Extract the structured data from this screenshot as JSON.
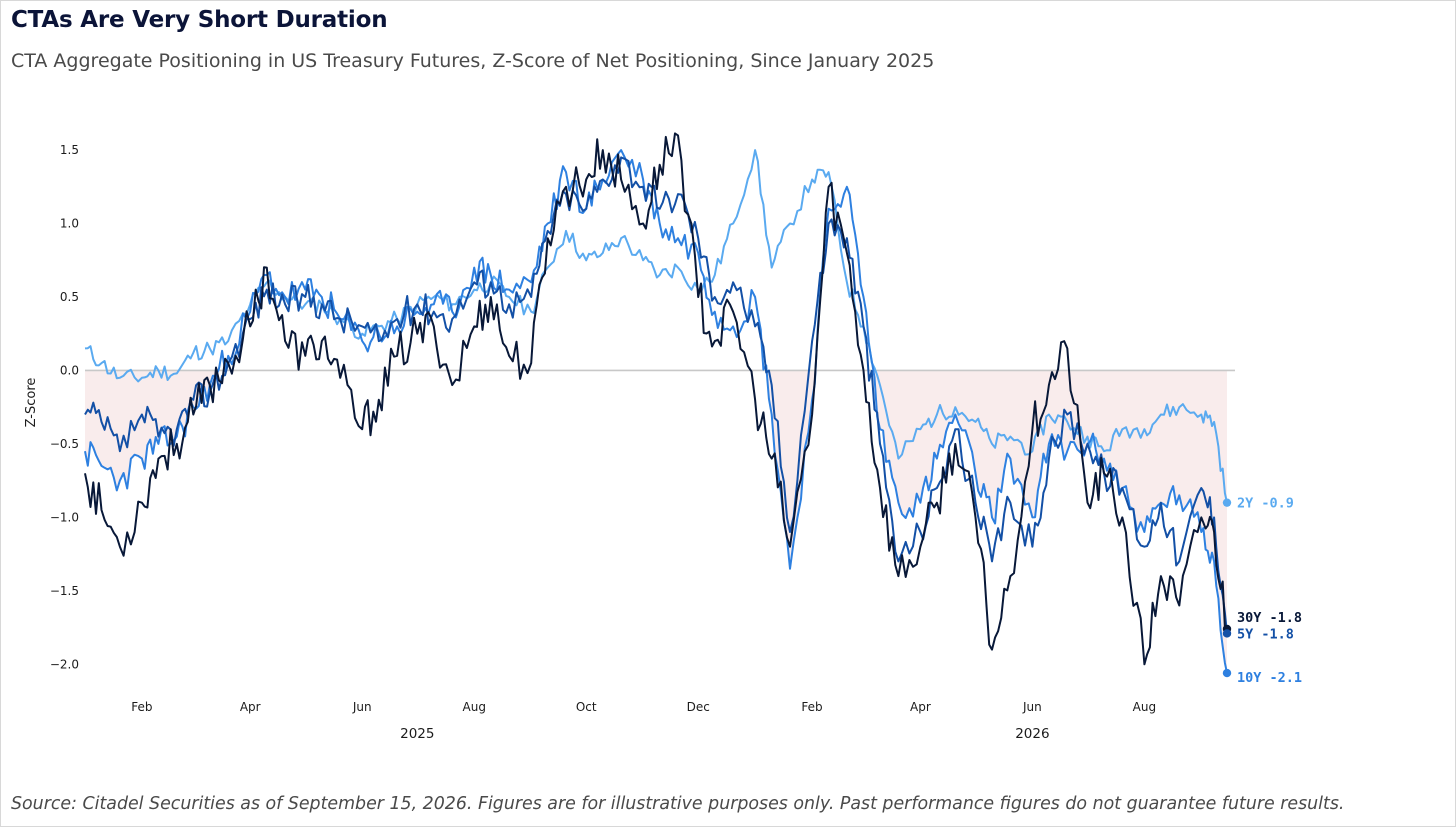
{
  "title": "CTAs Are Very Short Duration",
  "subtitle": "CTA Aggregate Positioning in US Treasury Futures, Z-Score of Net Positioning, Since January 2025",
  "source": "Source: Citadel Securities as of September 15, 2026. Figures are for illustrative purposes only. Past performance figures do not guarantee future results.",
  "colors": {
    "2Y": "#5aaaf0",
    "10Y": "#2e80e0",
    "5Y": "#1350a6",
    "30Y": "#081838",
    "zero_line": "#c8c8c8",
    "negative_fill": "#f9ecec"
  },
  "chart_data": {
    "type": "line",
    "ylabel": "Z-Score",
    "xlabel": "",
    "ylim": [
      -2.25,
      1.8
    ],
    "y_ticks": [
      {
        "value": 1.5,
        "label": "1.5"
      },
      {
        "value": 1.0,
        "label": "1.0"
      },
      {
        "value": 0.5,
        "label": "0.5"
      },
      {
        "value": 0.0,
        "label": "0.0"
      },
      {
        "value": -0.5,
        "label": "−0.5"
      },
      {
        "value": -1.0,
        "label": "−1.0"
      },
      {
        "value": -1.5,
        "label": "−1.5"
      },
      {
        "value": -2.0,
        "label": "−2.0"
      }
    ],
    "x_ticks": [
      {
        "date": "2025-02-01",
        "label": "Feb"
      },
      {
        "date": "2025-04-01",
        "label": "Apr"
      },
      {
        "date": "2025-06-01",
        "label": "Jun"
      },
      {
        "date": "2025-08-01",
        "label": "Aug"
      },
      {
        "date": "2025-10-01",
        "label": "Oct"
      },
      {
        "date": "2025-12-01",
        "label": "Dec"
      },
      {
        "date": "2026-02-01",
        "label": "Feb"
      },
      {
        "date": "2026-04-01",
        "label": "Apr"
      },
      {
        "date": "2026-06-01",
        "label": "Jun"
      },
      {
        "date": "2026-08-01",
        "label": "Aug"
      }
    ],
    "year_labels": [
      {
        "date": "2025-07-01",
        "label": "2025"
      },
      {
        "date": "2026-06-01",
        "label": "2026"
      }
    ],
    "grid": false,
    "negative_region_shaded": true,
    "end_labels": [
      {
        "series": "2Y",
        "label": "2Y -0.9"
      },
      {
        "series": "30Y",
        "label": "30Y -1.8"
      },
      {
        "series": "5Y",
        "label": "5Y -1.8"
      },
      {
        "series": "10Y",
        "label": "10Y -2.1"
      }
    ],
    "series": [
      {
        "name": "2Y",
        "points": [
          [
            "2025-01-01",
            0.15
          ],
          [
            "2025-01-10",
            0.05
          ],
          [
            "2025-01-20",
            -0.05
          ],
          [
            "2025-02-01",
            -0.05
          ],
          [
            "2025-02-10",
            0.0
          ],
          [
            "2025-02-20",
            -0.02
          ],
          [
            "2025-03-01",
            0.12
          ],
          [
            "2025-03-10",
            0.15
          ],
          [
            "2025-03-20",
            0.2
          ],
          [
            "2025-04-01",
            0.45
          ],
          [
            "2025-04-10",
            0.6
          ],
          [
            "2025-04-20",
            0.5
          ],
          [
            "2025-05-01",
            0.45
          ],
          [
            "2025-05-10",
            0.45
          ],
          [
            "2025-05-20",
            0.35
          ],
          [
            "2025-06-01",
            0.25
          ],
          [
            "2025-06-10",
            0.3
          ],
          [
            "2025-06-20",
            0.35
          ],
          [
            "2025-07-01",
            0.45
          ],
          [
            "2025-07-10",
            0.5
          ],
          [
            "2025-07-20",
            0.45
          ],
          [
            "2025-08-01",
            0.55
          ],
          [
            "2025-08-10",
            0.6
          ],
          [
            "2025-08-20",
            0.5
          ],
          [
            "2025-09-01",
            0.4
          ],
          [
            "2025-09-10",
            0.7
          ],
          [
            "2025-09-20",
            0.95
          ],
          [
            "2025-10-01",
            0.75
          ],
          [
            "2025-10-10",
            0.8
          ],
          [
            "2025-10-20",
            0.9
          ],
          [
            "2025-11-01",
            0.75
          ],
          [
            "2025-11-10",
            0.65
          ],
          [
            "2025-11-20",
            0.7
          ],
          [
            "2025-12-01",
            0.55
          ],
          [
            "2025-12-10",
            0.65
          ],
          [
            "2025-12-20",
            1.0
          ],
          [
            "2026-01-01",
            1.5
          ],
          [
            "2026-01-10",
            0.7
          ],
          [
            "2026-01-20",
            1.0
          ],
          [
            "2026-02-01",
            1.3
          ],
          [
            "2026-02-10",
            1.35
          ],
          [
            "2026-02-20",
            0.6
          ],
          [
            "2026-03-01",
            0.3
          ],
          [
            "2026-03-10",
            -0.1
          ],
          [
            "2026-03-20",
            -0.6
          ],
          [
            "2026-04-01",
            -0.4
          ],
          [
            "2026-04-10",
            -0.3
          ],
          [
            "2026-04-20",
            -0.25
          ],
          [
            "2026-05-01",
            -0.35
          ],
          [
            "2026-05-10",
            -0.5
          ],
          [
            "2026-05-20",
            -0.45
          ],
          [
            "2026-06-01",
            -0.55
          ],
          [
            "2026-06-10",
            -0.3
          ],
          [
            "2026-06-20",
            -0.35
          ],
          [
            "2026-07-01",
            -0.45
          ],
          [
            "2026-07-10",
            -0.55
          ],
          [
            "2026-07-20",
            -0.4
          ],
          [
            "2026-08-01",
            -0.4
          ],
          [
            "2026-08-10",
            -0.3
          ],
          [
            "2026-08-20",
            -0.25
          ],
          [
            "2026-09-01",
            -0.3
          ],
          [
            "2026-09-08",
            -0.35
          ],
          [
            "2026-09-15",
            -0.9
          ]
        ]
      },
      {
        "name": "10Y",
        "points": [
          [
            "2025-01-01",
            -0.55
          ],
          [
            "2025-01-10",
            -0.65
          ],
          [
            "2025-01-20",
            -0.75
          ],
          [
            "2025-02-01",
            -0.6
          ],
          [
            "2025-02-10",
            -0.5
          ],
          [
            "2025-02-20",
            -0.45
          ],
          [
            "2025-03-01",
            -0.25
          ],
          [
            "2025-03-10",
            -0.1
          ],
          [
            "2025-03-20",
            0.1
          ],
          [
            "2025-04-01",
            0.4
          ],
          [
            "2025-04-10",
            0.65
          ],
          [
            "2025-04-20",
            0.5
          ],
          [
            "2025-05-01",
            0.55
          ],
          [
            "2025-05-10",
            0.5
          ],
          [
            "2025-05-20",
            0.35
          ],
          [
            "2025-06-01",
            0.2
          ],
          [
            "2025-06-10",
            0.25
          ],
          [
            "2025-06-20",
            0.3
          ],
          [
            "2025-07-01",
            0.4
          ],
          [
            "2025-07-10",
            0.45
          ],
          [
            "2025-07-20",
            0.4
          ],
          [
            "2025-08-01",
            0.7
          ],
          [
            "2025-08-10",
            0.65
          ],
          [
            "2025-08-20",
            0.55
          ],
          [
            "2025-09-01",
            0.6
          ],
          [
            "2025-09-10",
            1.0
          ],
          [
            "2025-09-20",
            1.35
          ],
          [
            "2025-10-01",
            1.1
          ],
          [
            "2025-10-10",
            1.3
          ],
          [
            "2025-10-20",
            1.5
          ],
          [
            "2025-11-01",
            1.3
          ],
          [
            "2025-11-10",
            1.0
          ],
          [
            "2025-11-20",
            0.9
          ],
          [
            "2025-12-01",
            0.8
          ],
          [
            "2025-12-10",
            0.4
          ],
          [
            "2025-12-20",
            0.3
          ],
          [
            "2026-01-01",
            0.5
          ],
          [
            "2026-01-10",
            -0.3
          ],
          [
            "2026-01-20",
            -1.35
          ],
          [
            "2026-02-01",
            -0.2
          ],
          [
            "2026-02-10",
            1.1
          ],
          [
            "2026-02-20",
            1.25
          ],
          [
            "2026-03-01",
            0.5
          ],
          [
            "2026-03-10",
            -0.4
          ],
          [
            "2026-03-20",
            -0.9
          ],
          [
            "2026-04-01",
            -0.9
          ],
          [
            "2026-04-10",
            -0.6
          ],
          [
            "2026-04-20",
            -0.3
          ],
          [
            "2026-05-01",
            -0.7
          ],
          [
            "2026-05-10",
            -1.0
          ],
          [
            "2026-05-20",
            -0.6
          ],
          [
            "2026-06-01",
            -1.0
          ],
          [
            "2026-06-10",
            -0.5
          ],
          [
            "2026-06-20",
            -0.55
          ],
          [
            "2026-07-01",
            -0.5
          ],
          [
            "2026-07-10",
            -0.6
          ],
          [
            "2026-07-20",
            -0.8
          ],
          [
            "2026-08-01",
            -1.1
          ],
          [
            "2026-08-10",
            -0.9
          ],
          [
            "2026-08-20",
            -0.85
          ],
          [
            "2026-09-01",
            -1.1
          ],
          [
            "2026-09-08",
            -1.3
          ],
          [
            "2026-09-15",
            -2.06
          ]
        ]
      },
      {
        "name": "5Y",
        "points": [
          [
            "2025-01-01",
            -0.3
          ],
          [
            "2025-01-10",
            -0.35
          ],
          [
            "2025-01-20",
            -0.55
          ],
          [
            "2025-02-01",
            -0.3
          ],
          [
            "2025-02-10",
            -0.45
          ],
          [
            "2025-02-20",
            -0.4
          ],
          [
            "2025-03-01",
            -0.2
          ],
          [
            "2025-03-10",
            -0.15
          ],
          [
            "2025-03-20",
            0.05
          ],
          [
            "2025-04-01",
            0.35
          ],
          [
            "2025-04-10",
            0.55
          ],
          [
            "2025-04-20",
            0.45
          ],
          [
            "2025-05-01",
            0.5
          ],
          [
            "2025-05-10",
            0.45
          ],
          [
            "2025-05-20",
            0.35
          ],
          [
            "2025-06-01",
            0.3
          ],
          [
            "2025-06-10",
            0.2
          ],
          [
            "2025-06-20",
            0.35
          ],
          [
            "2025-07-01",
            0.45
          ],
          [
            "2025-07-10",
            0.4
          ],
          [
            "2025-07-20",
            0.35
          ],
          [
            "2025-08-01",
            0.6
          ],
          [
            "2025-08-10",
            0.6
          ],
          [
            "2025-08-20",
            0.45
          ],
          [
            "2025-09-01",
            0.5
          ],
          [
            "2025-09-10",
            0.95
          ],
          [
            "2025-09-20",
            1.2
          ],
          [
            "2025-10-01",
            1.1
          ],
          [
            "2025-10-10",
            1.3
          ],
          [
            "2025-10-20",
            1.45
          ],
          [
            "2025-11-01",
            1.25
          ],
          [
            "2025-11-10",
            1.1
          ],
          [
            "2025-11-20",
            1.2
          ],
          [
            "2025-12-01",
            0.9
          ],
          [
            "2025-12-10",
            0.5
          ],
          [
            "2025-12-20",
            0.6
          ],
          [
            "2026-01-01",
            0.3
          ],
          [
            "2026-01-10",
            -0.1
          ],
          [
            "2026-01-20",
            -1.1
          ],
          [
            "2026-02-01",
            0.2
          ],
          [
            "2026-02-10",
            1.0
          ],
          [
            "2026-02-20",
            0.9
          ],
          [
            "2026-03-01",
            0.3
          ],
          [
            "2026-03-10",
            -0.5
          ],
          [
            "2026-03-20",
            -1.3
          ],
          [
            "2026-04-01",
            -1.1
          ],
          [
            "2026-04-10",
            -0.8
          ],
          [
            "2026-04-20",
            -0.4
          ],
          [
            "2026-05-01",
            -0.9
          ],
          [
            "2026-05-10",
            -1.3
          ],
          [
            "2026-05-20",
            -0.9
          ],
          [
            "2026-06-01",
            -1.2
          ],
          [
            "2026-06-10",
            -0.6
          ],
          [
            "2026-06-20",
            -0.3
          ],
          [
            "2026-07-01",
            -0.5
          ],
          [
            "2026-07-10",
            -0.7
          ],
          [
            "2026-07-20",
            -0.8
          ],
          [
            "2026-08-01",
            -1.2
          ],
          [
            "2026-08-10",
            -0.9
          ],
          [
            "2026-08-20",
            -1.3
          ],
          [
            "2026-09-01",
            -0.8
          ],
          [
            "2026-09-08",
            -1.0
          ],
          [
            "2026-09-15",
            -1.79
          ]
        ]
      },
      {
        "name": "30Y",
        "points": [
          [
            "2025-01-01",
            -0.7
          ],
          [
            "2025-01-10",
            -0.95
          ],
          [
            "2025-01-20",
            -1.2
          ],
          [
            "2025-02-01",
            -0.9
          ],
          [
            "2025-02-10",
            -0.6
          ],
          [
            "2025-02-20",
            -0.5
          ],
          [
            "2025-03-01",
            -0.3
          ],
          [
            "2025-03-10",
            -0.1
          ],
          [
            "2025-03-20",
            0.05
          ],
          [
            "2025-04-01",
            0.3
          ],
          [
            "2025-04-10",
            0.7
          ],
          [
            "2025-04-20",
            0.2
          ],
          [
            "2025-05-01",
            0.1
          ],
          [
            "2025-05-10",
            0.2
          ],
          [
            "2025-05-20",
            -0.05
          ],
          [
            "2025-06-01",
            -0.4
          ],
          [
            "2025-06-10",
            -0.2
          ],
          [
            "2025-06-20",
            0.1
          ],
          [
            "2025-07-01",
            0.25
          ],
          [
            "2025-07-10",
            0.3
          ],
          [
            "2025-07-20",
            -0.1
          ],
          [
            "2025-08-01",
            0.3
          ],
          [
            "2025-08-10",
            0.5
          ],
          [
            "2025-08-20",
            0.1
          ],
          [
            "2025-09-01",
            0.05
          ],
          [
            "2025-09-10",
            0.9
          ],
          [
            "2025-09-20",
            1.25
          ],
          [
            "2025-10-01",
            1.3
          ],
          [
            "2025-10-10",
            1.5
          ],
          [
            "2025-10-20",
            1.3
          ],
          [
            "2025-11-01",
            1.0
          ],
          [
            "2025-11-10",
            1.4
          ],
          [
            "2025-11-20",
            1.6
          ],
          [
            "2025-12-01",
            0.5
          ],
          [
            "2025-12-10",
            0.2
          ],
          [
            "2025-12-20",
            0.4
          ],
          [
            "2026-01-01",
            -0.2
          ],
          [
            "2026-01-10",
            -0.6
          ],
          [
            "2026-01-20",
            -1.2
          ],
          [
            "2026-02-01",
            -0.3
          ],
          [
            "2026-02-10",
            1.25
          ],
          [
            "2026-02-20",
            0.8
          ],
          [
            "2026-03-01",
            0.0
          ],
          [
            "2026-03-10",
            -0.8
          ],
          [
            "2026-03-20",
            -1.4
          ],
          [
            "2026-04-01",
            -1.2
          ],
          [
            "2026-04-10",
            -0.9
          ],
          [
            "2026-04-20",
            -0.5
          ],
          [
            "2026-05-01",
            -1.0
          ],
          [
            "2026-05-10",
            -1.9
          ],
          [
            "2026-05-20",
            -1.4
          ],
          [
            "2026-06-01",
            -0.4
          ],
          [
            "2026-06-10",
            -0.1
          ],
          [
            "2026-06-20",
            0.15
          ],
          [
            "2026-07-01",
            -0.9
          ],
          [
            "2026-07-10",
            -0.7
          ],
          [
            "2026-07-20",
            -1.0
          ],
          [
            "2026-08-01",
            -2.0
          ],
          [
            "2026-08-10",
            -1.4
          ],
          [
            "2026-08-20",
            -1.6
          ],
          [
            "2026-09-01",
            -1.0
          ],
          [
            "2026-09-08",
            -1.1
          ],
          [
            "2026-09-15",
            -1.76
          ]
        ]
      }
    ]
  }
}
